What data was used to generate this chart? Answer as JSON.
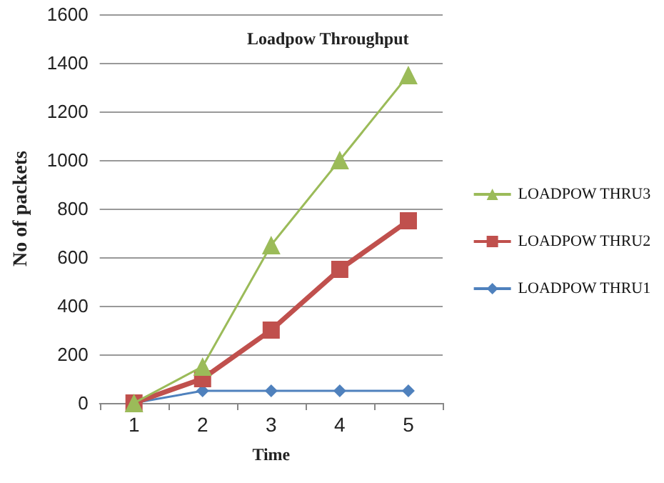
{
  "chart_data": {
    "type": "line",
    "title": "Loadpow Throughput",
    "xlabel": "Time",
    "ylabel": "No of packets",
    "categories": [
      "1",
      "2",
      "3",
      "4",
      "5"
    ],
    "series": [
      {
        "name": "LOADPOW THRU3",
        "color": "#9bbb59",
        "marker": "triangle",
        "values": [
          0,
          150,
          650,
          1000,
          1350
        ]
      },
      {
        "name": "LOADPOW THRU2",
        "color": "#c0504d",
        "marker": "square",
        "values": [
          0,
          100,
          300,
          550,
          750
        ]
      },
      {
        "name": "LOADPOW THRU1",
        "color": "#4f81bd",
        "marker": "diamond",
        "values": [
          0,
          50,
          50,
          50,
          50
        ]
      }
    ],
    "ylim": [
      0,
      1600
    ],
    "yticks": [
      0,
      200,
      400,
      600,
      800,
      1000,
      1200,
      1400,
      1600
    ],
    "grid": "y",
    "legend": "right"
  }
}
